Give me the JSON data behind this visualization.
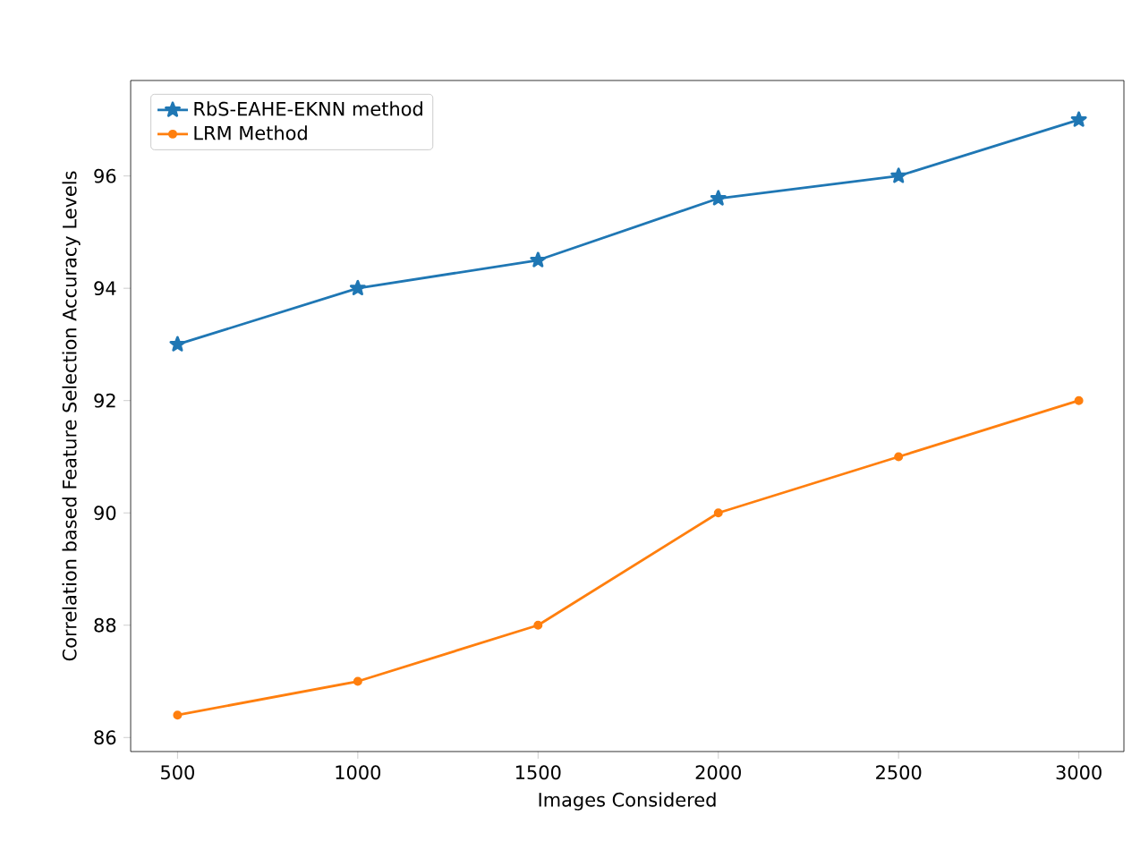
{
  "chart_data": {
    "type": "line",
    "xlabel": "Images Considered",
    "ylabel": "Correlation based Feature Selection Accuracy Levels",
    "x": [
      500,
      1000,
      1500,
      2000,
      2500,
      3000
    ],
    "series": [
      {
        "name": "RbS-EAHE-EKNN method",
        "color": "#1f77b4",
        "marker": "star",
        "values": [
          93,
          94,
          94.5,
          95.6,
          96,
          97
        ]
      },
      {
        "name": "LRM  Method",
        "color": "#ff7f0e",
        "marker": "circle",
        "values": [
          86.4,
          87,
          88,
          90,
          91,
          92
        ]
      }
    ],
    "xlim": [
      370,
      3125
    ],
    "ylim": [
      85.75,
      97.7
    ],
    "xticks": [
      500,
      1000,
      1500,
      2000,
      2500,
      3000
    ],
    "yticks": [
      86,
      88,
      90,
      92,
      94,
      96
    ],
    "grid": false,
    "legend": "top left",
    "line_style": "solid"
  }
}
